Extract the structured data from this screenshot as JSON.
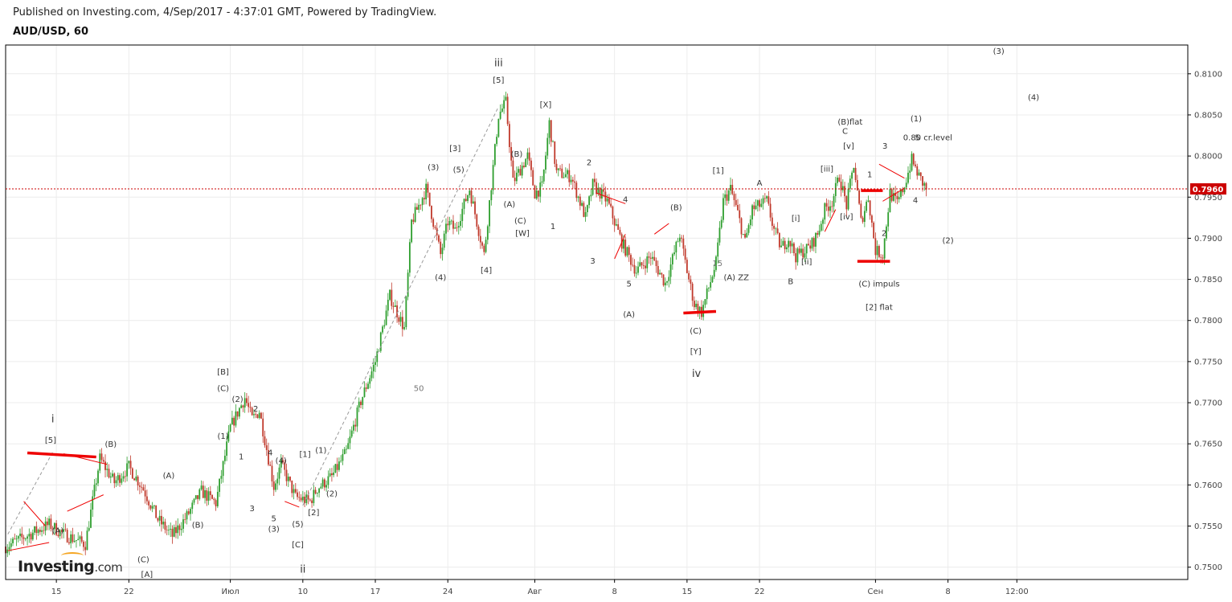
{
  "header": {
    "published": "Published on Investing.com, 4/Sep/2017 - 4:37:01 GMT, Powered by TradingView.",
    "title": "AUD/USD, 60"
  },
  "logo": {
    "brand": "Investing",
    "suffix": ".com",
    "accent": "#f5a623"
  },
  "colors": {
    "up": "#2e9e2e",
    "down": "#c0392b",
    "price_line": "#cc0000",
    "mark": "#ee0000",
    "grid": "#ececec",
    "frame": "#000000"
  },
  "chart_data": {
    "type": "candlestick",
    "title": "AUD/USD, 60",
    "ylim": [
      0.7485,
      0.8135
    ],
    "y_ticks": [
      "0.8100",
      "0.8050",
      "0.8000",
      "0.7950",
      "0.7900",
      "0.7850",
      "0.7800",
      "0.7750",
      "0.7700",
      "0.7650",
      "0.7600",
      "0.7550",
      "0.7500"
    ],
    "x_ticks": [
      "15",
      "22",
      "Июл",
      "10",
      "17",
      "24",
      "Авг",
      "8",
      "15",
      "22",
      "Сен",
      "8",
      "12:00"
    ],
    "current_price": "0.7960",
    "path": [
      [
        0,
        0.7525
      ],
      [
        6,
        0.7552
      ],
      [
        8,
        0.754
      ],
      [
        11,
        0.7528
      ],
      [
        13,
        0.7632
      ],
      [
        15,
        0.7603
      ],
      [
        17,
        0.7622
      ],
      [
        19,
        0.7595
      ],
      [
        21,
        0.7558
      ],
      [
        23,
        0.7538
      ],
      [
        25,
        0.7562
      ],
      [
        27,
        0.7592
      ],
      [
        29,
        0.7578
      ],
      [
        31,
        0.767
      ],
      [
        33,
        0.7706
      ],
      [
        34,
        0.768
      ],
      [
        35,
        0.769
      ],
      [
        37,
        0.7598
      ],
      [
        38,
        0.7625
      ],
      [
        40,
        0.7585
      ],
      [
        42,
        0.758
      ],
      [
        43,
        0.7596
      ],
      [
        45,
        0.761
      ],
      [
        47,
        0.764
      ],
      [
        49,
        0.7702
      ],
      [
        51,
        0.775
      ],
      [
        53,
        0.783
      ],
      [
        55,
        0.779
      ],
      [
        56,
        0.792
      ],
      [
        58,
        0.796
      ],
      [
        60,
        0.788
      ],
      [
        61,
        0.792
      ],
      [
        62,
        0.791
      ],
      [
        64,
        0.796
      ],
      [
        66,
        0.788
      ],
      [
        68,
        0.805
      ],
      [
        69,
        0.8065
      ],
      [
        70,
        0.7968
      ],
      [
        72,
        0.8
      ],
      [
        73,
        0.7955
      ],
      [
        74,
        0.7962
      ],
      [
        75,
        0.804
      ],
      [
        76,
        0.798
      ],
      [
        78,
        0.7975
      ],
      [
        80,
        0.7925
      ],
      [
        81,
        0.7965
      ],
      [
        83,
        0.7945
      ],
      [
        85,
        0.7895
      ],
      [
        87,
        0.786
      ],
      [
        89,
        0.7878
      ],
      [
        91,
        0.7845
      ],
      [
        93,
        0.7905
      ],
      [
        94,
        0.786
      ],
      [
        95,
        0.782
      ],
      [
        96,
        0.781
      ],
      [
        98,
        0.787
      ],
      [
        99,
        0.7945
      ],
      [
        100,
        0.796
      ],
      [
        101,
        0.793
      ],
      [
        102,
        0.7895
      ],
      [
        103,
        0.7935
      ],
      [
        105,
        0.7945
      ],
      [
        106,
        0.791
      ],
      [
        107,
        0.7888
      ],
      [
        108,
        0.79
      ],
      [
        109,
        0.7878
      ],
      [
        111,
        0.789
      ],
      [
        112,
        0.7905
      ],
      [
        113,
        0.7935
      ],
      [
        114,
        0.7945
      ],
      [
        115,
        0.7975
      ],
      [
        116,
        0.794
      ],
      [
        117,
        0.799
      ],
      [
        118,
        0.792
      ],
      [
        119,
        0.795
      ],
      [
        120,
        0.7885
      ],
      [
        121,
        0.788
      ],
      [
        122,
        0.7955
      ],
      [
        123,
        0.7942
      ],
      [
        124,
        0.7965
      ],
      [
        125,
        0.7995
      ],
      [
        126,
        0.7975
      ],
      [
        127,
        0.796
      ]
    ],
    "x_tick_pos": [
      7,
      17,
      31,
      41,
      51,
      61,
      73,
      84,
      94,
      104,
      120,
      130,
      139.5
    ],
    "annotations": [
      {
        "t": "i",
        "x": 6.5,
        "y": 0.768,
        "s": "big"
      },
      {
        "t": "[5]",
        "x": 6.2,
        "y": 0.7655
      },
      {
        "t": "(A)",
        "x": 7.2,
        "y": 0.7545
      },
      {
        "t": "(B)",
        "x": 14.5,
        "y": 0.765
      },
      {
        "t": "(C)",
        "x": 19,
        "y": 0.751
      },
      {
        "t": "[A]",
        "x": 19.5,
        "y": 0.7492
      },
      {
        "t": "(A)",
        "x": 22.5,
        "y": 0.7612
      },
      {
        "t": "(B)",
        "x": 26.5,
        "y": 0.7552
      },
      {
        "t": "[B]",
        "x": 30,
        "y": 0.7738
      },
      {
        "t": "(C)",
        "x": 30,
        "y": 0.7718
      },
      {
        "t": "(1)",
        "x": 30,
        "y": 0.766
      },
      {
        "t": "(2)",
        "x": 32,
        "y": 0.7705
      },
      {
        "t": "2",
        "x": 34.5,
        "y": 0.7693
      },
      {
        "t": "1",
        "x": 32.5,
        "y": 0.7635
      },
      {
        "t": "3",
        "x": 34,
        "y": 0.7572
      },
      {
        "t": "4",
        "x": 36.5,
        "y": 0.764
      },
      {
        "t": "(4)",
        "x": 38,
        "y": 0.763
      },
      {
        "t": "5",
        "x": 37,
        "y": 0.756
      },
      {
        "t": "(3)",
        "x": 37,
        "y": 0.7547
      },
      {
        "t": "(5)",
        "x": 40.3,
        "y": 0.7553
      },
      {
        "t": "[C]",
        "x": 40.3,
        "y": 0.7528
      },
      {
        "t": "ii",
        "x": 41,
        "y": 0.7497,
        "s": "big"
      },
      {
        "t": "[1]",
        "x": 41.3,
        "y": 0.7638
      },
      {
        "t": "(1)",
        "x": 43.5,
        "y": 0.7643
      },
      {
        "t": "[2]",
        "x": 42.5,
        "y": 0.7567
      },
      {
        "t": "(2)",
        "x": 45,
        "y": 0.759
      },
      {
        "t": "50",
        "x": 57,
        "y": 0.7718,
        "s": "gray"
      },
      {
        "t": "(3)",
        "x": 59,
        "y": 0.7987
      },
      {
        "t": "(5)",
        "x": 62.5,
        "y": 0.7984
      },
      {
        "t": "[3]",
        "x": 62,
        "y": 0.801
      },
      {
        "t": "(4)",
        "x": 60,
        "y": 0.7853
      },
      {
        "t": "[4]",
        "x": 66.3,
        "y": 0.7862
      },
      {
        "t": "iii",
        "x": 68,
        "y": 0.8113,
        "s": "big"
      },
      {
        "t": "[5]",
        "x": 68,
        "y": 0.8093
      },
      {
        "t": "[X]",
        "x": 74.5,
        "y": 0.8063
      },
      {
        "t": "(B)",
        "x": 70.5,
        "y": 0.8003
      },
      {
        "t": "(A)",
        "x": 69.5,
        "y": 0.7942
      },
      {
        "t": "(C)",
        "x": 71,
        "y": 0.7922
      },
      {
        "t": "[W]",
        "x": 71.3,
        "y": 0.7907
      },
      {
        "t": "1",
        "x": 75.5,
        "y": 0.7915
      },
      {
        "t": "2",
        "x": 80.5,
        "y": 0.7993
      },
      {
        "t": "4",
        "x": 85.5,
        "y": 0.7948
      },
      {
        "t": "3",
        "x": 81,
        "y": 0.7873
      },
      {
        "t": "5",
        "x": 86,
        "y": 0.7845
      },
      {
        "t": "(A)",
        "x": 86,
        "y": 0.7808
      },
      {
        "t": "(B)",
        "x": 92.5,
        "y": 0.7938
      },
      {
        "t": "(C)",
        "x": 95.2,
        "y": 0.7788
      },
      {
        "t": "[Y]",
        "x": 95.2,
        "y": 0.7763
      },
      {
        "t": "iv",
        "x": 95.3,
        "y": 0.7735,
        "s": "big"
      },
      {
        "t": "15",
        "x": 98.2,
        "y": 0.787,
        "s": "gray"
      },
      {
        "t": "(A) ZZ",
        "x": 100.8,
        "y": 0.7853
      },
      {
        "t": "[1]",
        "x": 98.3,
        "y": 0.7983
      },
      {
        "t": "A",
        "x": 104,
        "y": 0.7968
      },
      {
        "t": "B",
        "x": 108.3,
        "y": 0.7848
      },
      {
        "t": "[i]",
        "x": 109,
        "y": 0.7925
      },
      {
        "t": "[ii]",
        "x": 110.5,
        "y": 0.7872
      },
      {
        "t": "[iii]",
        "x": 113.3,
        "y": 0.7985
      },
      {
        "t": "[iv]",
        "x": 116,
        "y": 0.7927
      },
      {
        "t": "(B)flat",
        "x": 116.5,
        "y": 0.8042
      },
      {
        "t": "C",
        "x": 115.8,
        "y": 0.8031
      },
      {
        "t": "[v]",
        "x": 116.3,
        "y": 0.8013
      },
      {
        "t": "1",
        "x": 119.2,
        "y": 0.7978
      },
      {
        "t": "(C) impuls",
        "x": 120.5,
        "y": 0.7845
      },
      {
        "t": "[2] flat",
        "x": 120.5,
        "y": 0.7817
      },
      {
        "t": "3",
        "x": 121.3,
        "y": 0.8013
      },
      {
        "t": "2",
        "x": 121.2,
        "y": 0.7907
      },
      {
        "t": "4",
        "x": 125.5,
        "y": 0.7947
      },
      {
        "t": "(1)",
        "x": 125.6,
        "y": 0.8046
      },
      {
        "t": "5",
        "x": 125.8,
        "y": 0.8023
      },
      {
        "t": "0.80 cr.level",
        "x": 127.2,
        "y": 0.8023
      },
      {
        "t": "(3)",
        "x": 137,
        "y": 0.8128
      },
      {
        "t": "(4)",
        "x": 141.8,
        "y": 0.8072
      },
      {
        "t": "(2)",
        "x": 130,
        "y": 0.7898
      }
    ],
    "marks": [
      {
        "type": "thick",
        "a": [
          3,
          0.7639
        ],
        "b": [
          12.5,
          0.7634
        ]
      },
      {
        "type": "thick",
        "a": [
          93.5,
          0.7809
        ],
        "b": [
          98,
          0.7811
        ]
      },
      {
        "type": "thick",
        "a": [
          117.5,
          0.7872
        ],
        "b": [
          122,
          0.7872
        ]
      },
      {
        "type": "thick",
        "a": [
          118,
          0.7958
        ],
        "b": [
          121,
          0.7958
        ]
      },
      {
        "type": "thin",
        "a": [
          0.3,
          0.752
        ],
        "b": [
          6,
          0.753
        ]
      },
      {
        "type": "thin",
        "a": [
          2.5,
          0.758
        ],
        "b": [
          5.5,
          0.755
        ]
      },
      {
        "type": "thin",
        "a": [
          8.5,
          0.7568
        ],
        "b": [
          13.5,
          0.7588
        ]
      },
      {
        "type": "thin",
        "a": [
          8,
          0.7638
        ],
        "b": [
          14,
          0.7625
        ]
      },
      {
        "type": "thin",
        "a": [
          38.5,
          0.758
        ],
        "b": [
          40.5,
          0.7573
        ]
      },
      {
        "type": "thin",
        "a": [
          81.5,
          0.7955
        ],
        "b": [
          85.5,
          0.7942
        ]
      },
      {
        "type": "thin",
        "a": [
          84,
          0.7875
        ],
        "b": [
          85.5,
          0.7905
        ]
      },
      {
        "type": "thin",
        "a": [
          89.5,
          0.7905
        ],
        "b": [
          91.5,
          0.7918
        ]
      },
      {
        "type": "thin",
        "a": [
          113,
          0.7908
        ],
        "b": [
          114.5,
          0.7935
        ]
      },
      {
        "type": "thin",
        "a": [
          120.5,
          0.799
        ],
        "b": [
          124,
          0.7973
        ]
      },
      {
        "type": "thin",
        "a": [
          121,
          0.7945
        ],
        "b": [
          124,
          0.7961
        ]
      }
    ],
    "dashed": [
      [
        [
          0.3,
          0.754
        ],
        [
          6.5,
          0.764
        ]
      ],
      [
        [
          41,
          0.7575
        ],
        [
          68,
          0.806
        ]
      ]
    ]
  }
}
